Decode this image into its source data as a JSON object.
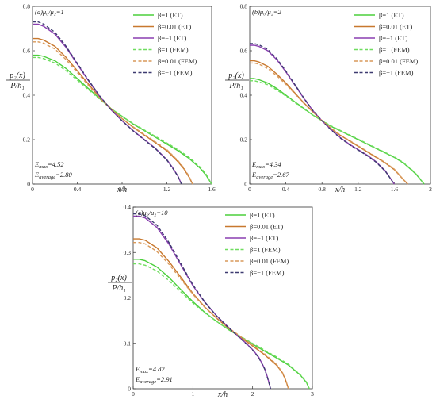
{
  "chart_data": [
    {
      "type": "line",
      "panel_label": "(a)",
      "ratio_text": "μ₀/μ₂=1",
      "ylabel_num": "p₂(x)",
      "ylabel_den": "P/h₁",
      "xlabel": "x/h",
      "xlim": [
        0,
        1.6
      ],
      "ylim": [
        0,
        0.8
      ],
      "xticks": [
        0,
        0.4,
        0.8,
        1.2,
        1.6
      ],
      "xtick_labels": [
        "0",
        "0.4",
        "0.8",
        "1.2",
        "1.6"
      ],
      "yticks": [
        0,
        0.2,
        0.4,
        0.6,
        0.8
      ],
      "ytick_labels": [
        "0",
        "0.2",
        "0.4",
        "0.6",
        "0.8"
      ],
      "emax_text": "E_max=4.52",
      "eavg_text": "E_average=2.80",
      "legend_position": "top-right",
      "series": [
        {
          "name": "β=1 (ET)",
          "style": "solid",
          "color": "#4ccf3c",
          "x": [
            0,
            0.05,
            0.1,
            0.2,
            0.3,
            0.4,
            0.5,
            0.6,
            0.7,
            0.8,
            0.9,
            1.0,
            1.1,
            1.2,
            1.3,
            1.4,
            1.5,
            1.55,
            1.6
          ],
          "y": [
            0.58,
            0.58,
            0.575,
            0.555,
            0.52,
            0.475,
            0.43,
            0.385,
            0.34,
            0.305,
            0.27,
            0.24,
            0.21,
            0.18,
            0.15,
            0.115,
            0.07,
            0.04,
            0
          ]
        },
        {
          "name": "β=0.01 (ET)",
          "style": "solid",
          "color": "#c8782e",
          "x": [
            0,
            0.05,
            0.1,
            0.2,
            0.3,
            0.4,
            0.5,
            0.6,
            0.7,
            0.8,
            0.9,
            1.0,
            1.1,
            1.2,
            1.3,
            1.35,
            1.4,
            1.43
          ],
          "y": [
            0.655,
            0.655,
            0.648,
            0.62,
            0.57,
            0.51,
            0.45,
            0.39,
            0.34,
            0.295,
            0.255,
            0.22,
            0.185,
            0.15,
            0.1,
            0.07,
            0.03,
            0
          ]
        },
        {
          "name": "β=−1 (ET)",
          "style": "solid",
          "color": "#8a3fb0",
          "x": [
            0,
            0.05,
            0.1,
            0.2,
            0.3,
            0.4,
            0.5,
            0.6,
            0.7,
            0.8,
            0.9,
            1.0,
            1.1,
            1.2,
            1.25,
            1.3,
            1.33
          ],
          "y": [
            0.72,
            0.72,
            0.71,
            0.675,
            0.615,
            0.54,
            0.465,
            0.395,
            0.335,
            0.285,
            0.24,
            0.2,
            0.16,
            0.11,
            0.075,
            0.035,
            0
          ]
        },
        {
          "name": "β=1 (FEM)",
          "style": "dashed",
          "color": "#6fdd5f",
          "x": [
            0,
            0.05,
            0.1,
            0.2,
            0.3,
            0.4,
            0.5,
            0.6,
            0.7,
            0.8,
            0.9,
            1.0,
            1.1,
            1.2,
            1.3,
            1.4,
            1.5,
            1.55,
            1.6
          ],
          "y": [
            0.57,
            0.57,
            0.565,
            0.545,
            0.51,
            0.468,
            0.425,
            0.382,
            0.34,
            0.305,
            0.272,
            0.243,
            0.214,
            0.185,
            0.155,
            0.12,
            0.075,
            0.045,
            0
          ]
        },
        {
          "name": "β=0.01 (FEM)",
          "style": "dashed",
          "color": "#d9995a",
          "x": [
            0,
            0.05,
            0.1,
            0.2,
            0.3,
            0.4,
            0.5,
            0.6,
            0.7,
            0.8,
            0.9,
            1.0,
            1.1,
            1.2,
            1.3,
            1.35,
            1.4,
            1.43
          ],
          "y": [
            0.64,
            0.64,
            0.634,
            0.608,
            0.56,
            0.502,
            0.444,
            0.387,
            0.338,
            0.295,
            0.257,
            0.223,
            0.189,
            0.155,
            0.105,
            0.074,
            0.034,
            0
          ]
        },
        {
          "name": "β=−1 (FEM)",
          "style": "dashed",
          "color": "#3d3a70",
          "x": [
            0,
            0.05,
            0.1,
            0.2,
            0.3,
            0.4,
            0.5,
            0.6,
            0.7,
            0.8,
            0.9,
            1.0,
            1.1,
            1.2,
            1.25,
            1.3,
            1.33
          ],
          "y": [
            0.73,
            0.73,
            0.72,
            0.683,
            0.62,
            0.544,
            0.468,
            0.397,
            0.336,
            0.285,
            0.239,
            0.198,
            0.158,
            0.108,
            0.073,
            0.034,
            0
          ]
        }
      ]
    },
    {
      "type": "line",
      "panel_label": "(b)",
      "ratio_text": "μ₀/μ₂=2",
      "ylabel_num": "p₂(x)",
      "ylabel_den": "P/h₁",
      "xlabel": "x/h",
      "xlim": [
        0,
        2.0
      ],
      "ylim": [
        0,
        0.8
      ],
      "xticks": [
        0,
        0.4,
        0.8,
        1.2,
        1.6,
        2.0
      ],
      "xtick_labels": [
        "0",
        "0.4",
        "0.8",
        "1.2",
        "1.6",
        "2"
      ],
      "yticks": [
        0,
        0.2,
        0.4,
        0.6,
        0.8
      ],
      "ytick_labels": [
        "0",
        "0.2",
        "0.4",
        "0.6",
        "0.8"
      ],
      "emax_text": "E_max=4.34",
      "eavg_text": "E_average=2.67",
      "legend_position": "top-right",
      "series": [
        {
          "name": "β=1 (ET)",
          "style": "solid",
          "color": "#4ccf3c",
          "x": [
            0,
            0.05,
            0.1,
            0.2,
            0.3,
            0.4,
            0.5,
            0.6,
            0.7,
            0.8,
            0.9,
            1.0,
            1.1,
            1.2,
            1.3,
            1.4,
            1.5,
            1.6,
            1.7,
            1.8,
            1.85,
            1.9,
            1.93
          ],
          "y": [
            0.475,
            0.475,
            0.47,
            0.455,
            0.43,
            0.4,
            0.37,
            0.34,
            0.31,
            0.285,
            0.26,
            0.24,
            0.22,
            0.2,
            0.18,
            0.16,
            0.14,
            0.12,
            0.095,
            0.06,
            0.04,
            0.015,
            0
          ]
        },
        {
          "name": "β=0.01 (ET)",
          "style": "solid",
          "color": "#c8782e",
          "x": [
            0,
            0.05,
            0.1,
            0.2,
            0.3,
            0.4,
            0.5,
            0.6,
            0.7,
            0.8,
            0.9,
            1.0,
            1.1,
            1.2,
            1.3,
            1.4,
            1.5,
            1.6,
            1.7,
            1.75
          ],
          "y": [
            0.555,
            0.555,
            0.55,
            0.53,
            0.495,
            0.455,
            0.41,
            0.365,
            0.325,
            0.285,
            0.25,
            0.22,
            0.195,
            0.17,
            0.145,
            0.12,
            0.095,
            0.065,
            0.02,
            0
          ]
        },
        {
          "name": "β=−1 (ET)",
          "style": "solid",
          "color": "#8a3fb0",
          "x": [
            0,
            0.05,
            0.1,
            0.2,
            0.3,
            0.4,
            0.5,
            0.6,
            0.7,
            0.8,
            0.9,
            1.0,
            1.1,
            1.2,
            1.3,
            1.4,
            1.5,
            1.55,
            1.6
          ],
          "y": [
            0.625,
            0.625,
            0.62,
            0.6,
            0.56,
            0.505,
            0.445,
            0.385,
            0.33,
            0.285,
            0.245,
            0.21,
            0.18,
            0.155,
            0.13,
            0.1,
            0.06,
            0.03,
            0
          ]
        },
        {
          "name": "β=1 (FEM)",
          "style": "dashed",
          "color": "#6fdd5f",
          "x": [
            0,
            0.05,
            0.1,
            0.2,
            0.3,
            0.4,
            0.5,
            0.6,
            0.7,
            0.8,
            0.9,
            1.0,
            1.1,
            1.2,
            1.3,
            1.4,
            1.5,
            1.6,
            1.7,
            1.8,
            1.85,
            1.9,
            1.93
          ],
          "y": [
            0.465,
            0.465,
            0.46,
            0.447,
            0.424,
            0.396,
            0.367,
            0.338,
            0.31,
            0.286,
            0.262,
            0.242,
            0.222,
            0.202,
            0.182,
            0.162,
            0.142,
            0.122,
            0.097,
            0.062,
            0.042,
            0.016,
            0
          ]
        },
        {
          "name": "β=0.01 (FEM)",
          "style": "dashed",
          "color": "#d9995a",
          "x": [
            0,
            0.05,
            0.1,
            0.2,
            0.3,
            0.4,
            0.5,
            0.6,
            0.7,
            0.8,
            0.9,
            1.0,
            1.1,
            1.2,
            1.3,
            1.4,
            1.5,
            1.6,
            1.7,
            1.75
          ],
          "y": [
            0.545,
            0.545,
            0.54,
            0.52,
            0.487,
            0.449,
            0.406,
            0.363,
            0.324,
            0.286,
            0.252,
            0.222,
            0.197,
            0.172,
            0.147,
            0.122,
            0.097,
            0.067,
            0.021,
            0
          ]
        },
        {
          "name": "β=−1 (FEM)",
          "style": "dashed",
          "color": "#3d3a70",
          "x": [
            0,
            0.05,
            0.1,
            0.2,
            0.3,
            0.4,
            0.5,
            0.6,
            0.7,
            0.8,
            0.9,
            1.0,
            1.1,
            1.2,
            1.3,
            1.4,
            1.5,
            1.55,
            1.6
          ],
          "y": [
            0.632,
            0.632,
            0.627,
            0.606,
            0.565,
            0.509,
            0.448,
            0.387,
            0.331,
            0.285,
            0.244,
            0.208,
            0.178,
            0.153,
            0.128,
            0.098,
            0.058,
            0.029,
            0
          ]
        }
      ]
    },
    {
      "type": "line",
      "panel_label": "(c)",
      "ratio_text": "μ₀/μ₂=10",
      "ylabel_num": "p₂(x)",
      "ylabel_den": "P/h₁",
      "xlabel": "x/h",
      "xlim": [
        0,
        3
      ],
      "ylim": [
        0,
        0.4
      ],
      "xticks": [
        0,
        1,
        2,
        3
      ],
      "xtick_labels": [
        "0",
        "1",
        "2",
        "3"
      ],
      "yticks": [
        0,
        0.1,
        0.2,
        0.3,
        0.4
      ],
      "ytick_labels": [
        "0",
        "0.1",
        "0.2",
        "0.3",
        "0.4"
      ],
      "emax_text": "E_max=4.82",
      "eavg_text": "E_average=2.91",
      "legend_position": "top-right",
      "series": [
        {
          "name": "β=1 (ET)",
          "style": "solid",
          "color": "#4ccf3c",
          "x": [
            0,
            0.1,
            0.2,
            0.4,
            0.6,
            0.8,
            1.0,
            1.2,
            1.4,
            1.6,
            1.8,
            2.0,
            2.2,
            2.4,
            2.6,
            2.8,
            2.9,
            2.95
          ],
          "y": [
            0.285,
            0.285,
            0.282,
            0.268,
            0.245,
            0.218,
            0.192,
            0.168,
            0.148,
            0.13,
            0.114,
            0.098,
            0.083,
            0.068,
            0.052,
            0.03,
            0.014,
            0
          ]
        },
        {
          "name": "β=0.01 (ET)",
          "style": "solid",
          "color": "#c8782e",
          "x": [
            0,
            0.1,
            0.2,
            0.4,
            0.6,
            0.8,
            1.0,
            1.2,
            1.4,
            1.6,
            1.8,
            2.0,
            2.2,
            2.4,
            2.5,
            2.55,
            2.6
          ],
          "y": [
            0.33,
            0.33,
            0.327,
            0.31,
            0.28,
            0.245,
            0.21,
            0.18,
            0.155,
            0.133,
            0.113,
            0.094,
            0.075,
            0.052,
            0.035,
            0.02,
            0
          ]
        },
        {
          "name": "β=−1 (ET)",
          "style": "solid",
          "color": "#8a3fb0",
          "x": [
            0,
            0.1,
            0.2,
            0.4,
            0.6,
            0.8,
            1.0,
            1.2,
            1.4,
            1.6,
            1.8,
            1.9,
            2.0,
            2.1,
            2.2,
            2.25,
            2.3
          ],
          "y": [
            0.38,
            0.38,
            0.376,
            0.355,
            0.318,
            0.272,
            0.227,
            0.19,
            0.16,
            0.135,
            0.111,
            0.099,
            0.086,
            0.07,
            0.045,
            0.025,
            0
          ]
        },
        {
          "name": "β=1 (FEM)",
          "style": "dashed",
          "color": "#6fdd5f",
          "x": [
            0,
            0.1,
            0.2,
            0.4,
            0.6,
            0.8,
            1.0,
            1.2,
            1.4,
            1.6,
            1.8,
            2.0,
            2.2,
            2.4,
            2.6,
            2.8,
            2.9,
            2.95
          ],
          "y": [
            0.275,
            0.275,
            0.272,
            0.259,
            0.238,
            0.213,
            0.189,
            0.167,
            0.148,
            0.131,
            0.115,
            0.1,
            0.085,
            0.07,
            0.054,
            0.031,
            0.015,
            0
          ]
        },
        {
          "name": "β=0.01 (FEM)",
          "style": "dashed",
          "color": "#d9995a",
          "x": [
            0,
            0.1,
            0.2,
            0.4,
            0.6,
            0.8,
            1.0,
            1.2,
            1.4,
            1.6,
            1.8,
            2.0,
            2.2,
            2.4,
            2.5,
            2.55,
            2.6
          ],
          "y": [
            0.322,
            0.322,
            0.319,
            0.302,
            0.274,
            0.241,
            0.208,
            0.179,
            0.155,
            0.134,
            0.115,
            0.096,
            0.077,
            0.054,
            0.036,
            0.021,
            0
          ]
        },
        {
          "name": "β=−1 (FEM)",
          "style": "dashed",
          "color": "#3d3a70",
          "x": [
            0,
            0.1,
            0.2,
            0.4,
            0.6,
            0.8,
            1.0,
            1.2,
            1.4,
            1.6,
            1.8,
            1.9,
            2.0,
            2.1,
            2.2,
            2.25,
            2.3
          ],
          "y": [
            0.385,
            0.385,
            0.381,
            0.36,
            0.322,
            0.275,
            0.229,
            0.191,
            0.16,
            0.134,
            0.11,
            0.098,
            0.085,
            0.069,
            0.044,
            0.024,
            0
          ]
        }
      ]
    }
  ]
}
